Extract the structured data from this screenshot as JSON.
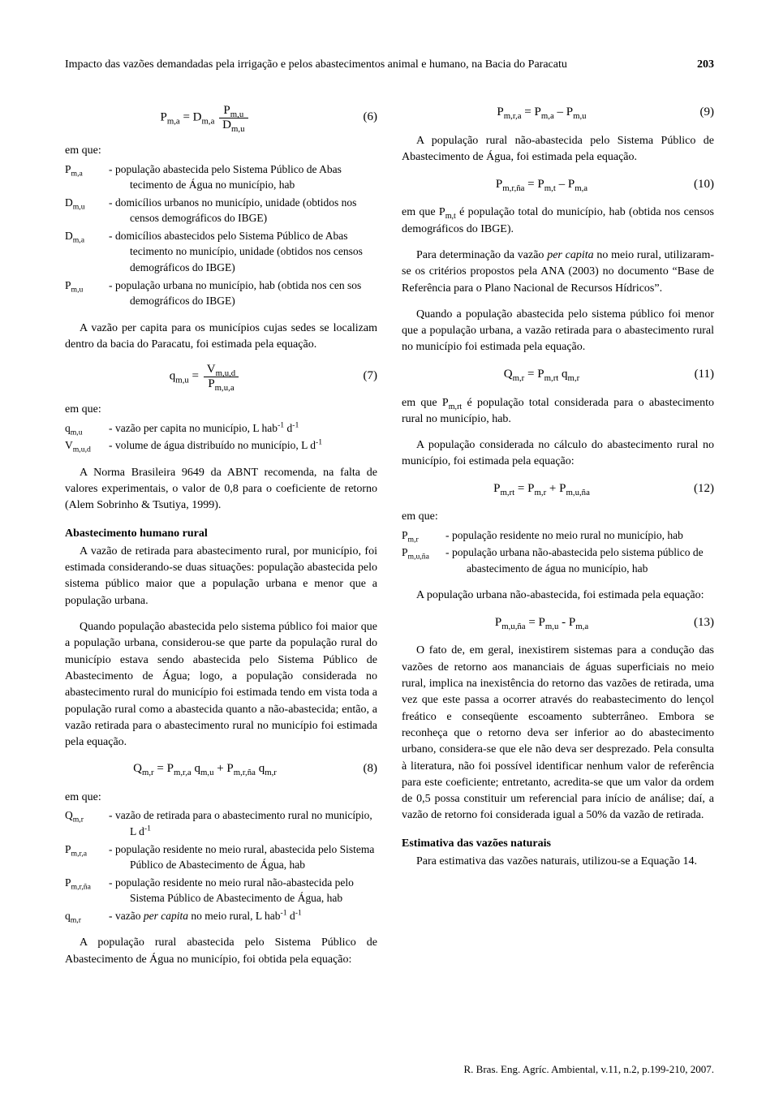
{
  "header": {
    "title": "Impacto das vazões demandadas pela irrigação e pelos abastecimentos animal e humano, na Bacia do Paracatu",
    "page_number": "203"
  },
  "left": {
    "eq6_num": "(6)",
    "emque1": "em que:",
    "defs1": [
      {
        "sym": "P<sub>m,a</sub>",
        "text": "população abastecida pelo Sistema Público de Abas tecimento de Água no município, hab"
      },
      {
        "sym": "D<sub>m,u</sub>",
        "text": "domicílios urbanos no município, unidade (obtidos nos censos demográficos do IBGE)"
      },
      {
        "sym": "D<sub>m,a</sub>",
        "text": "domicílios abastecidos pelo Sistema Público de Abas tecimento no município, unidade (obtidos nos censos demográficos do IBGE)"
      },
      {
        "sym": "P<sub>m,u</sub>",
        "text": "população urbana no município, hab (obtida nos cen sos demográficos do IBGE)"
      }
    ],
    "para1": "A vazão per capita para os municípios cujas sedes se localizam dentro da bacia do Paracatu, foi estimada pela equação.",
    "eq7_num": "(7)",
    "emque2": "em que:",
    "defs2": [
      {
        "sym": "q<sub>m,u</sub>",
        "text": "vazão per capita no município, L hab<sup>-1</sup> d<sup>-1</sup>"
      },
      {
        "sym": "V<sub>m,u,d</sub>",
        "text": "volume de água distribuído no município, L d<sup>-1</sup>"
      }
    ],
    "para2": "A Norma Brasileira 9649 da ABNT recomenda, na falta de valores experimentais, o valor de 0,8 para o coeficiente de retorno (Alem Sobrinho & Tsutiya, 1999).",
    "head1": "Abastecimento humano rural",
    "para3": "A vazão de retirada para abastecimento rural, por município, foi estimada considerando-se duas situações: população abastecida pelo sistema público maior que a população urbana e menor que a população urbana.",
    "para4": "Quando população abastecida pelo sistema público foi maior que a população urbana, considerou-se que parte da população rural do município estava sendo abastecida pelo Sistema Público de Abastecimento de Água; logo, a população considerada no abastecimento rural do município foi estimada tendo em vista toda a população rural como a abastecida quanto a não-abastecida; então, a vazão retirada para o abastecimento rural no município foi estimada pela equação.",
    "eq8_body": "Q<sub>m,r</sub> = P<sub>m,r,a</sub> q<sub>m,u</sub> + P<sub>m,r,ña</sub> q<sub>m,r</sub>",
    "eq8_num": "(8)",
    "emque3": "em que:",
    "defs3": [
      {
        "sym": "Q<sub>m,r</sub>",
        "text": "vazão de retirada para o abastecimento rural no município, L d<sup>-1</sup>"
      },
      {
        "sym": "P<sub>m,r,a</sub>",
        "text": "população residente no meio rural, abastecida pelo Sistema Público de Abastecimento de Água, hab"
      },
      {
        "sym": "P<sub>m,r,ña</sub>",
        "text": "população residente no meio rural não-abastecida pelo Sistema Público de Abastecimento de Água, hab"
      },
      {
        "sym": "q<sub>m,r</sub>",
        "text": "vazão <span class=\"italic\">per capita</span> no meio rural, L hab<sup>-1</sup> d<sup>-1</sup>"
      }
    ],
    "para5": "A população rural abastecida pelo Sistema Público de Abastecimento de Água no município, foi obtida pela equação:"
  },
  "right": {
    "eq9_body": "P<sub>m,r,a</sub> = P<sub>m,a</sub> – P<sub>m,u</sub>",
    "eq9_num": "(9)",
    "para1": "A população rural não-abastecida pelo Sistema Público de Abastecimento de Água, foi estimada pela equação.",
    "eq10_body": "P<sub>m,r,ña</sub> = P<sub>m,t</sub> – P<sub>m,a</sub>",
    "eq10_num": "(10)",
    "para2": "em que P<sub>m,t</sub> é população total do município, hab (obtida nos censos demográficos do IBGE).",
    "para3": "Para determinação da vazão <span class=\"italic\">per capita</span> no meio rural, utilizaram-se os critérios propostos pela ANA (2003) no documento “Base de Referência para o Plano Nacional de Recursos Hídricos”.",
    "para4": "Quando a população abastecida pelo sistema público foi menor que a população urbana, a vazão retirada para o abastecimento rural no município foi estimada pela equação.",
    "eq11_body": "Q<sub>m,r</sub> = P<sub>m,rt</sub>  q<sub>m,r</sub>",
    "eq11_num": "(11)",
    "para5": "em que P<sub>m,rt</sub> é população total considerada para o abastecimento rural no município, hab.",
    "para6": "A população considerada no cálculo do abastecimento rural no município, foi estimada pela equação:",
    "eq12_body": "P<sub>m,rt</sub> = P<sub>m,r</sub> + P<sub>m,u,ña</sub>",
    "eq12_num": "(12)",
    "emque1": "em que:",
    "defs1": [
      {
        "sym": "P<sub>m,r</sub>",
        "text": "população residente no meio rural no município, hab"
      },
      {
        "sym": "P<sub>m,u,ña</sub>",
        "text": "população urbana não-abastecida pelo sistema público de abastecimento de água no município, hab"
      }
    ],
    "para7": "A população urbana não-abastecida, foi estimada pela equação:",
    "eq13_body": "P<sub>m,u,ña</sub> = P<sub>m,u</sub> - P<sub>m,a</sub>",
    "eq13_num": "(13)",
    "para8": "O fato de, em geral, inexistirem sistemas para a condução das vazões de retorno aos mananciais de águas superficiais no meio rural, implica na inexistência do retorno das vazões de retirada, uma vez que este passa a ocorrer através do reabastecimento do lençol freático e conseqüente escoamento subterrâneo. Embora se reconheça que o retorno deva ser inferior ao do abastecimento urbano, considera-se que ele não deva ser desprezado. Pela consulta à literatura, não foi possível identificar nenhum valor de referência para este coeficiente; entretanto, acredita-se que um valor da ordem de 0,5 possa constituir um referencial para início de análise; daí, a vazão de retorno foi considerada igual a 50% da vazão de retirada.",
    "head1": "Estimativa das vazões naturais",
    "para9": "Para estimativa das vazões naturais, utilizou-se a Equação 14."
  },
  "footer": "R. Bras. Eng. Agríc. Ambiental, v.11, n.2, p.199-210, 2007."
}
